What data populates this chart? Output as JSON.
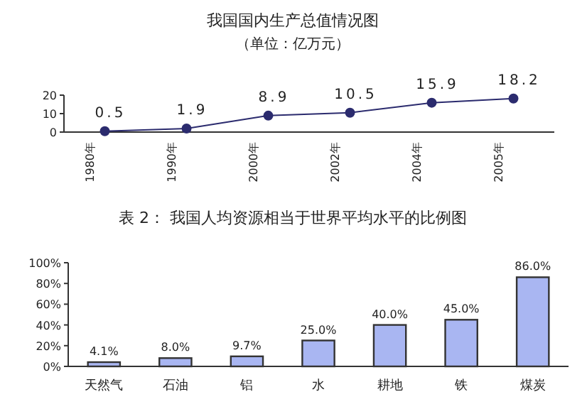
{
  "chart_data": [
    {
      "type": "line",
      "title": "我国国内生产总值情况图",
      "subtitle": "（单位：亿万元）",
      "categories": [
        "1980年",
        "1990年",
        "2000年",
        "2002年",
        "2004年",
        "2005年"
      ],
      "series": [
        {
          "color": "#2b2b6e",
          "values": [
            0.5,
            1.9,
            8.9,
            10.5,
            15.9,
            18.2
          ]
        }
      ],
      "ylim": [
        0,
        20
      ],
      "yticks": [
        0,
        10,
        20
      ],
      "data_labels": true,
      "marker": "circle",
      "line_style": "solid"
    },
    {
      "type": "bar",
      "title": "表 2：   我国人均资源相当于世界平均水平的比例图",
      "categories": [
        "天然气",
        "石油",
        "铝",
        "水",
        "耕地",
        "铁",
        "煤炭"
      ],
      "values": [
        4.1,
        8.0,
        9.7,
        25.0,
        40.0,
        45.0,
        86.0
      ],
      "value_labels": [
        "4.1%",
        "8.0%",
        "9.7%",
        "25.0%",
        "40.0%",
        "45.0%",
        "86.0%"
      ],
      "color": "#a9b6f2",
      "ylim": [
        0,
        100
      ],
      "yticks": [
        {
          "value": 0,
          "label": "0%"
        },
        {
          "value": 20,
          "label": "20%"
        },
        {
          "value": 40,
          "label": "40%"
        },
        {
          "value": 60,
          "label": "60%"
        },
        {
          "value": 80,
          "label": "80%"
        },
        {
          "value": 100,
          "label": "100%"
        }
      ]
    }
  ]
}
